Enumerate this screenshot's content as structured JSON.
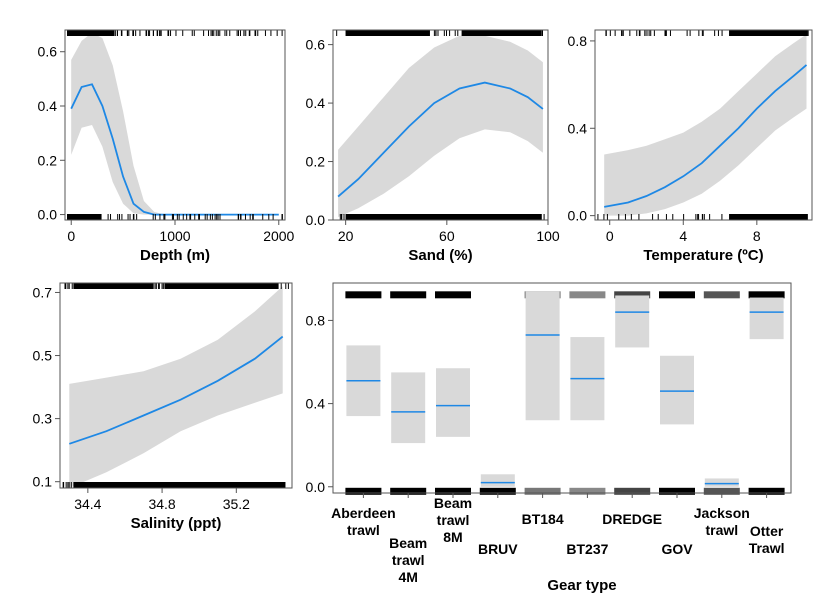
{
  "chart_data": [
    {
      "type": "area",
      "xlabel": "Depth (m)",
      "ylabel": "",
      "xlim": [
        -60,
        2060
      ],
      "ylim": [
        -0.02,
        0.68
      ],
      "xticks": [
        0,
        1000,
        2000
      ],
      "xtick_labels": [
        "0",
        "1000",
        "2000"
      ],
      "yticks": [
        0.0,
        0.2,
        0.4,
        0.6
      ],
      "ytick_labels": [
        "0.0",
        "0.2",
        "0.4",
        "0.6"
      ],
      "line_color": "#1e88e5",
      "band_color": "#d9d9d9",
      "x": [
        0,
        100,
        200,
        300,
        400,
        500,
        600,
        700,
        800,
        900,
        1000,
        1200,
        1400,
        1600,
        1800,
        2000
      ],
      "y": [
        0.39,
        0.47,
        0.48,
        0.4,
        0.28,
        0.14,
        0.04,
        0.01,
        0.0,
        0.0,
        0.0,
        0.0,
        0.0,
        0.0,
        0.0,
        0.0
      ],
      "lower": [
        0.22,
        0.32,
        0.33,
        0.25,
        0.12,
        0.04,
        0.005,
        0.0,
        0.0,
        0.0,
        0.0,
        0.0,
        0.0,
        0.0,
        0.0,
        0.0
      ],
      "upper": [
        0.57,
        0.64,
        0.67,
        0.65,
        0.55,
        0.38,
        0.18,
        0.05,
        0.01,
        0.0,
        0.0,
        0.0,
        0.0,
        0.0,
        0.0,
        0.0
      ]
    },
    {
      "type": "area",
      "xlabel": "Sand (%)",
      "ylabel": "",
      "xlim": [
        15,
        100
      ],
      "ylim": [
        0.0,
        0.65
      ],
      "xticks": [
        20,
        60,
        100
      ],
      "xtick_labels": [
        "20",
        "60",
        "100"
      ],
      "yticks": [
        0.0,
        0.2,
        0.4,
        0.6
      ],
      "ytick_labels": [
        "0.0",
        "0.2",
        "0.4",
        "0.6"
      ],
      "line_color": "#1e88e5",
      "band_color": "#d9d9d9",
      "x": [
        17,
        25,
        35,
        45,
        55,
        65,
        75,
        85,
        92,
        98
      ],
      "y": [
        0.08,
        0.14,
        0.23,
        0.32,
        0.4,
        0.45,
        0.47,
        0.45,
        0.42,
        0.38
      ],
      "lower": [
        0.01,
        0.04,
        0.09,
        0.15,
        0.22,
        0.28,
        0.31,
        0.3,
        0.27,
        0.23
      ],
      "upper": [
        0.24,
        0.32,
        0.42,
        0.52,
        0.59,
        0.63,
        0.63,
        0.61,
        0.58,
        0.54
      ]
    },
    {
      "type": "area",
      "xlabel": "Temperature (ºC)",
      "ylabel": "",
      "xlim": [
        -0.8,
        11
      ],
      "ylim": [
        -0.02,
        0.85
      ],
      "xticks": [
        0,
        4,
        8
      ],
      "xtick_labels": [
        "0",
        "4",
        "8"
      ],
      "yticks": [
        0.0,
        0.4,
        0.8
      ],
      "ytick_labels": [
        "0.0",
        "0.4",
        "0.8"
      ],
      "line_color": "#1e88e5",
      "band_color": "#d9d9d9",
      "x": [
        -0.3,
        1,
        2,
        3,
        4,
        5,
        6,
        7,
        8,
        9,
        10,
        10.7
      ],
      "y": [
        0.04,
        0.06,
        0.09,
        0.13,
        0.18,
        0.24,
        0.32,
        0.4,
        0.49,
        0.57,
        0.64,
        0.69
      ],
      "lower": [
        0.0,
        0.0,
        0.01,
        0.03,
        0.06,
        0.1,
        0.16,
        0.23,
        0.31,
        0.39,
        0.45,
        0.49
      ],
      "upper": [
        0.28,
        0.3,
        0.32,
        0.35,
        0.38,
        0.43,
        0.49,
        0.57,
        0.65,
        0.73,
        0.79,
        0.83
      ]
    },
    {
      "type": "area",
      "xlabel": "Salinity (ppt)",
      "ylabel": "",
      "xlim": [
        34.25,
        35.5
      ],
      "ylim": [
        0.08,
        0.73
      ],
      "xticks": [
        34.4,
        34.8,
        35.2
      ],
      "xtick_labels": [
        "34.4",
        "34.8",
        "35.2"
      ],
      "yticks": [
        0.1,
        0.3,
        0.5,
        0.7
      ],
      "ytick_labels": [
        "0.1",
        "0.3",
        "0.5",
        "0.7"
      ],
      "line_color": "#1e88e5",
      "band_color": "#d9d9d9",
      "x": [
        34.3,
        34.5,
        34.7,
        34.9,
        35.1,
        35.3,
        35.45
      ],
      "y": [
        0.22,
        0.26,
        0.31,
        0.36,
        0.42,
        0.49,
        0.56
      ],
      "lower": [
        0.08,
        0.13,
        0.19,
        0.26,
        0.31,
        0.35,
        0.38
      ],
      "upper": [
        0.41,
        0.43,
        0.45,
        0.49,
        0.55,
        0.64,
        0.72
      ]
    },
    {
      "type": "bar",
      "xlabel": "Gear type",
      "ylabel": "",
      "ylim": [
        -0.03,
        0.98
      ],
      "yticks": [
        0.0,
        0.4,
        0.8
      ],
      "ytick_labels": [
        "0.0",
        "0.4",
        "0.8"
      ],
      "line_color": "#1e88e5",
      "band_color": "#d9d9d9",
      "categories": [
        "Aberdeen trawl",
        "Beam trawl 4M",
        "Beam trawl 8M",
        "BRUV",
        "BT184",
        "BT237",
        "DREDGE",
        "GOV",
        "Jackson trawl",
        "Otter Trawl"
      ],
      "category_label_lines": [
        [
          "Aberdeen",
          "trawl"
        ],
        [
          "Beam",
          "trawl",
          "4M"
        ],
        [
          "Beam",
          "trawl",
          "8M"
        ],
        [
          "BRUV"
        ],
        [
          "BT184"
        ],
        [
          "BT237"
        ],
        [
          "DREDGE"
        ],
        [
          "GOV"
        ],
        [
          "Jackson",
          "trawl"
        ],
        [
          "Otter",
          "Trawl"
        ]
      ],
      "values": [
        0.51,
        0.36,
        0.39,
        0.02,
        0.73,
        0.52,
        0.84,
        0.46,
        0.015,
        0.84
      ],
      "lower": [
        0.34,
        0.21,
        0.24,
        0.0,
        0.32,
        0.32,
        0.67,
        0.3,
        0.0,
        0.71
      ],
      "upper": [
        0.68,
        0.55,
        0.57,
        0.06,
        0.94,
        0.72,
        0.92,
        0.63,
        0.04,
        0.91
      ]
    }
  ]
}
